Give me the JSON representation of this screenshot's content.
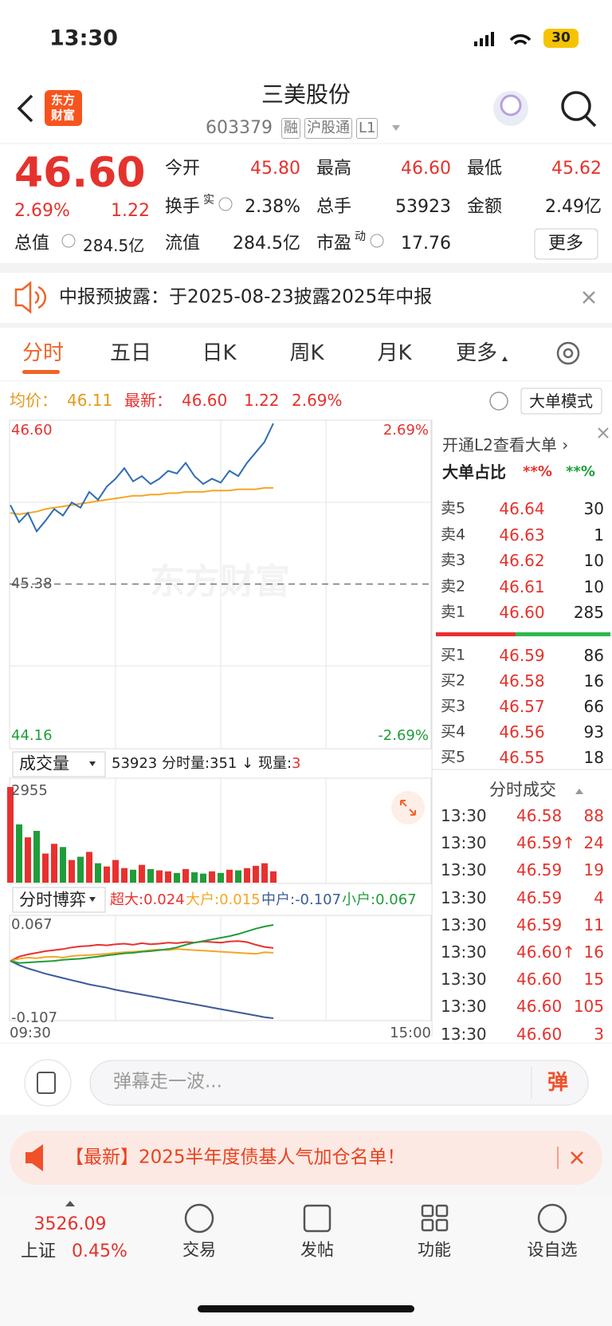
{
  "status": {
    "time": "13:30",
    "battery": "30"
  },
  "nav": {
    "logo": [
      "东方",
      "财富"
    ],
    "title": "三美股份",
    "code": "603379",
    "badges": [
      "融",
      "沪股通",
      "L1"
    ]
  },
  "quote": {
    "price": "46.60",
    "change_pct": "2.69%",
    "change": "1.22",
    "market_cap_label": "总值",
    "market_cap": "284.5亿",
    "fields": [
      {
        "label": "今开",
        "value": "45.80"
      },
      {
        "label": "最高",
        "value": "46.60"
      },
      {
        "label": "最低",
        "value": "45.62"
      },
      {
        "label": "换手",
        "sup": "实",
        "value": "2.38%"
      },
      {
        "label": "总手",
        "value": "53923"
      },
      {
        "label": "金额",
        "value": "2.49亿"
      },
      {
        "label": "流值",
        "value": "284.5亿"
      },
      {
        "label": "市盈",
        "sup": "动",
        "value": "17.76"
      }
    ],
    "more": "更多"
  },
  "notice": {
    "text": "中报预披露：于2025-08-23披露2025年中报"
  },
  "tabs": [
    "分时",
    "五日",
    "日K",
    "周K",
    "月K",
    "更多"
  ],
  "info": {
    "avg_label": "均价：",
    "avg": "46.11",
    "last_label": "最新：",
    "last": "46.60",
    "change": "1.22",
    "pct": "2.69%",
    "mode": "大单模式"
  },
  "chart_data": [
    {
      "type": "line",
      "x": [
        "09:30",
        "09:35",
        "09:40",
        "09:45",
        "09:50",
        "09:55",
        "10:00",
        "10:05",
        "10:10",
        "10:15",
        "10:20",
        "10:25",
        "10:30",
        "10:35",
        "10:40",
        "10:45",
        "10:50",
        "10:55",
        "11:00",
        "11:05",
        "11:10",
        "11:15",
        "11:20",
        "11:25",
        "11:30",
        "13:05",
        "13:10",
        "13:15",
        "13:20",
        "13:25",
        "13:30"
      ],
      "xlim": [
        "09:30",
        "15:00"
      ],
      "series": [
        {
          "color": "#2f6db5",
          "values": [
            45.98,
            45.85,
            45.92,
            45.78,
            45.86,
            45.95,
            45.9,
            46.0,
            45.96,
            46.08,
            46.02,
            46.12,
            46.18,
            46.26,
            46.16,
            46.2,
            46.14,
            46.18,
            46.24,
            46.22,
            46.3,
            46.2,
            46.14,
            46.18,
            46.15,
            46.24,
            46.2,
            46.3,
            46.38,
            46.46,
            46.6
          ]
        },
        {
          "color": "#f5a623",
          "values": [
            45.92,
            45.91,
            45.92,
            45.93,
            45.95,
            45.96,
            45.97,
            45.98,
            45.99,
            46.0,
            46.01,
            46.02,
            46.03,
            46.04,
            46.05,
            46.05,
            46.06,
            46.06,
            46.07,
            46.07,
            46.08,
            46.08,
            46.08,
            46.09,
            46.09,
            46.09,
            46.1,
            46.1,
            46.1,
            46.11,
            46.11
          ]
        }
      ],
      "ylim": [
        44.16,
        46.6
      ],
      "yticks": [
        {
          "value": 44.16,
          "label": "44.16"
        },
        {
          "value": 45.38,
          "label": "45.38"
        },
        {
          "value": 46.6,
          "label": "46.60"
        }
      ],
      "y2lim": [
        -2.69,
        2.69
      ],
      "y2ticks": [
        {
          "value": -2.69,
          "label": "-2.69%"
        },
        {
          "value": 2.69,
          "label": "2.69%"
        }
      ],
      "grid": true
    },
    {
      "type": "bar",
      "title": "成交量",
      "total": "53923",
      "minute_label": "分时量: ",
      "minute_volume": "351",
      "arrow": "↓",
      "now_label": "现量: ",
      "now_volume": "3",
      "x": [
        "09:30",
        "09:35",
        "09:40",
        "09:45",
        "09:50",
        "09:55",
        "10:00",
        "10:05",
        "10:10",
        "10:15",
        "10:20",
        "10:25",
        "10:30",
        "10:35",
        "10:40",
        "10:45",
        "10:50",
        "10:55",
        "11:00",
        "11:05",
        "11:10",
        "11:15",
        "11:20",
        "11:25",
        "11:30",
        "13:05",
        "13:10",
        "13:15",
        "13:20",
        "13:25",
        "13:30"
      ],
      "xlim": [
        "09:30",
        "15:00"
      ],
      "values": [
        2955,
        1800,
        1400,
        1600,
        900,
        1200,
        1100,
        700,
        800,
        950,
        600,
        500,
        700,
        450,
        400,
        550,
        420,
        380,
        350,
        300,
        420,
        320,
        280,
        350,
        300,
        400,
        380,
        450,
        520,
        600,
        351
      ],
      "colors": {
        "up": "#e8312f",
        "down": "#1f9d3a"
      },
      "ylim": [
        0,
        2955
      ],
      "yticks": [
        2955
      ]
    },
    {
      "type": "line",
      "title": "分时博弈",
      "x": [
        "09:30",
        "09:35",
        "09:40",
        "09:45",
        "09:50",
        "09:55",
        "10:00",
        "10:05",
        "10:10",
        "10:15",
        "10:20",
        "10:25",
        "10:30",
        "10:35",
        "10:40",
        "10:45",
        "10:50",
        "10:55",
        "11:00",
        "11:05",
        "11:10",
        "11:15",
        "11:20",
        "11:25",
        "11:30",
        "13:05",
        "13:10",
        "13:15",
        "13:20",
        "13:25",
        "13:30"
      ],
      "xlim": [
        "09:30",
        "15:00"
      ],
      "xticks": [
        "09:30",
        "15:00"
      ],
      "series": [
        {
          "label": "超大:0.024",
          "color": "#e8312f",
          "values": [
            0,
            0.008,
            0.012,
            0.015,
            0.018,
            0.02,
            0.022,
            0.025,
            0.027,
            0.028,
            0.03,
            0.029,
            0.031,
            0.032,
            0.03,
            0.033,
            0.031,
            0.032,
            0.034,
            0.033,
            0.035,
            0.034,
            0.036,
            0.035,
            0.034,
            0.036,
            0.037,
            0.035,
            0.03,
            0.026,
            0.024
          ]
        },
        {
          "label": "大户:0.015",
          "color": "#f5a623",
          "values": [
            0,
            0.004,
            0.006,
            0.005,
            0.007,
            0.008,
            0.006,
            0.009,
            0.01,
            0.011,
            0.012,
            0.013,
            0.015,
            0.016,
            0.017,
            0.018,
            0.02,
            0.021,
            0.02,
            0.022,
            0.021,
            0.02,
            0.019,
            0.018,
            0.017,
            0.016,
            0.015,
            0.014,
            0.013,
            0.016,
            0.015
          ]
        },
        {
          "label": "中户:-0.107",
          "color": "#3c5a99",
          "values": [
            0,
            -0.008,
            -0.014,
            -0.019,
            -0.024,
            -0.028,
            -0.032,
            -0.036,
            -0.04,
            -0.044,
            -0.047,
            -0.05,
            -0.054,
            -0.057,
            -0.06,
            -0.063,
            -0.066,
            -0.069,
            -0.072,
            -0.075,
            -0.078,
            -0.081,
            -0.084,
            -0.087,
            -0.09,
            -0.093,
            -0.096,
            -0.099,
            -0.102,
            -0.105,
            -0.107
          ]
        },
        {
          "label": "小户:0.067",
          "color": "#1f9d3a",
          "values": [
            0,
            -0.004,
            -0.003,
            -0.002,
            -0.001,
            0,
            0.002,
            0.003,
            0.004,
            0.006,
            0.008,
            0.01,
            0.012,
            0.014,
            0.015,
            0.017,
            0.018,
            0.02,
            0.022,
            0.025,
            0.03,
            0.034,
            0.037,
            0.04,
            0.043,
            0.046,
            0.05,
            0.055,
            0.06,
            0.064,
            0.067
          ]
        }
      ],
      "ylim": [
        -0.107,
        0.067
      ],
      "yticks": [
        -0.107,
        0.067
      ]
    }
  ],
  "order_book": {
    "header": "开通L2查看大单 ›",
    "ratio_label": "大单占比",
    "ratio_values": [
      "**%",
      "**%"
    ],
    "asks": [
      {
        "label": "卖5",
        "price": "46.64",
        "volume": "30"
      },
      {
        "label": "卖4",
        "price": "46.63",
        "volume": "1"
      },
      {
        "label": "卖3",
        "price": "46.62",
        "volume": "10"
      },
      {
        "label": "卖2",
        "price": "46.61",
        "volume": "10"
      },
      {
        "label": "卖1",
        "price": "46.60",
        "volume": "285"
      }
    ],
    "bids": [
      {
        "label": "买1",
        "price": "46.59",
        "volume": "86"
      },
      {
        "label": "买2",
        "price": "46.58",
        "volume": "16"
      },
      {
        "label": "买3",
        "price": "46.57",
        "volume": "66"
      },
      {
        "label": "买4",
        "price": "46.56",
        "volume": "93"
      },
      {
        "label": "买5",
        "price": "46.55",
        "volume": "18"
      }
    ]
  },
  "trades": {
    "title": "分时成交",
    "rows": [
      {
        "time": "13:30",
        "price": "46.58",
        "volume": "88"
      },
      {
        "time": "13:30",
        "price": "46.59↑",
        "volume": "24"
      },
      {
        "time": "13:30",
        "price": "46.59",
        "volume": "19"
      },
      {
        "time": "13:30",
        "price": "46.59",
        "volume": "4"
      },
      {
        "time": "13:30",
        "price": "46.59",
        "volume": "11"
      },
      {
        "time": "13:30",
        "price": "46.60↑",
        "volume": "16"
      },
      {
        "time": "13:30",
        "price": "46.60",
        "volume": "15"
      },
      {
        "time": "13:30",
        "price": "46.60",
        "volume": "105"
      },
      {
        "time": "13:30",
        "price": "46.60",
        "volume": "3"
      }
    ]
  },
  "comment": {
    "placeholder": "弹幕走一波...",
    "button": "弹"
  },
  "banner": {
    "text": "【最新】2025半年度债基人气加仓名单！"
  },
  "bottom": {
    "index_value": "3526.09",
    "index_name": "上证",
    "index_pct": "0.45%",
    "items": [
      "交易",
      "发帖",
      "功能",
      "设自选"
    ]
  }
}
